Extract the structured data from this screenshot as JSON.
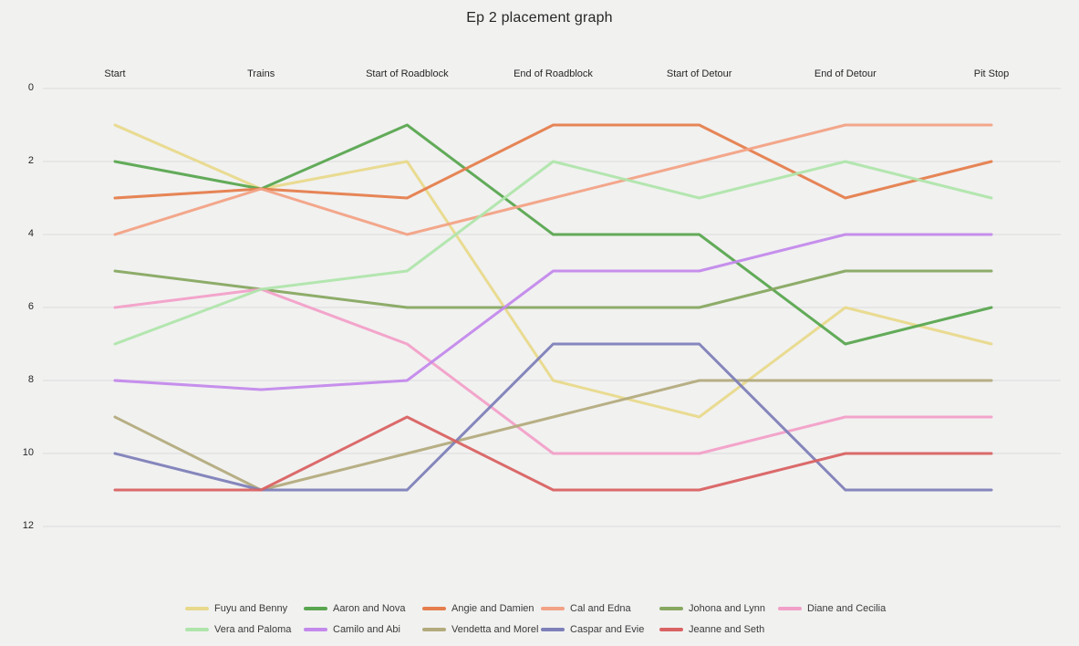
{
  "chart_data": {
    "type": "line",
    "title": "Ep 2 placement graph",
    "categories": [
      "Start",
      "Trains",
      "Start of Roadblock",
      "End of Roadblock",
      "Start of Detour",
      "End of Detour",
      "Pit Stop"
    ],
    "y_ticks": [
      0,
      2,
      4,
      6,
      8,
      10,
      12
    ],
    "ylim": [
      0,
      12
    ],
    "y_inverted_meaning": "placement rank, 1 = first place at top",
    "grid": true,
    "legend_position": "bottom",
    "series": [
      {
        "name": "Fuyu and Benny",
        "color": "#e8d98b",
        "values": [
          1,
          2.75,
          2,
          8,
          9,
          6,
          7
        ]
      },
      {
        "name": "Aaron and Nova",
        "color": "#5aa650",
        "values": [
          2,
          2.75,
          1,
          4,
          4,
          7,
          6
        ]
      },
      {
        "name": "Angie and Damien",
        "color": "#e57e4d",
        "values": [
          3,
          2.75,
          3,
          1,
          1,
          3,
          2
        ]
      },
      {
        "name": "Cal and Edna",
        "color": "#f2a285",
        "values": [
          4,
          2.75,
          4,
          3,
          2,
          1,
          1
        ]
      },
      {
        "name": "Johona and Lynn",
        "color": "#87a861",
        "values": [
          5,
          5.5,
          6,
          6,
          6,
          5,
          5
        ]
      },
      {
        "name": "Diane and Cecilia",
        "color": "#f2a0c8",
        "values": [
          6,
          5.5,
          7,
          10,
          10,
          9,
          9
        ]
      },
      {
        "name": "Vera and Paloma",
        "color": "#afe5ab",
        "values": [
          7,
          5.5,
          5,
          2,
          3,
          2,
          3
        ]
      },
      {
        "name": "Camilo and Abi",
        "color": "#c389eb",
        "values": [
          8,
          8.25,
          8,
          5,
          5,
          4,
          4
        ]
      },
      {
        "name": "Vendetta and Morel",
        "color": "#b3ab7d",
        "values": [
          9,
          11,
          10,
          9,
          8,
          8,
          8
        ]
      },
      {
        "name": "Caspar and Evie",
        "color": "#7e80b8",
        "values": [
          10,
          11,
          11,
          7,
          7,
          11,
          11
        ]
      },
      {
        "name": "Jeanne and Seth",
        "color": "#d96262",
        "values": [
          11,
          11,
          9,
          11,
          11,
          10,
          10
        ]
      }
    ]
  },
  "colors": {
    "background": "#f1f1f0",
    "gridline": "#dcdcdb",
    "text": "#262626"
  }
}
